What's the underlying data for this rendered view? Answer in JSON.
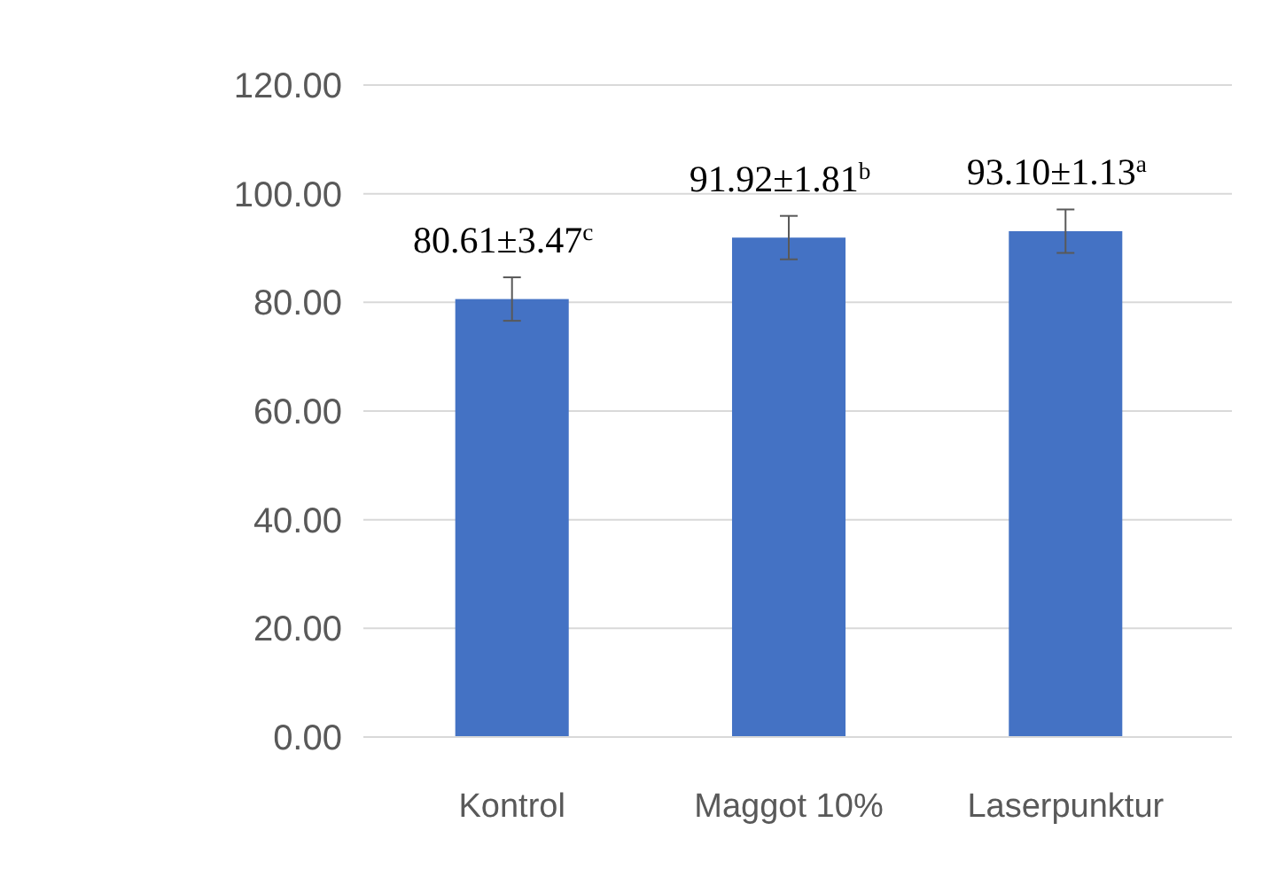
{
  "chart_data": {
    "type": "bar",
    "categories": [
      "Kontrol",
      "Maggot 10%",
      "Laserpunktur"
    ],
    "values": [
      80.61,
      91.92,
      93.1
    ],
    "errors": [
      4,
      4,
      4
    ],
    "value_labels": [
      "80.61±3.47$^{c}$",
      "91.92±1.81$^{b}$",
      "93.10±1.13$^{a}$"
    ],
    "color": "#4472c4",
    "ylim": [
      0,
      120
    ],
    "yticks": [
      {
        "value": 0,
        "label": "0.00"
      },
      {
        "value": 20,
        "label": "20.00"
      },
      {
        "value": 40,
        "label": "40.00"
      },
      {
        "value": 60,
        "label": "60.00"
      },
      {
        "value": 80,
        "label": "80.00"
      },
      {
        "value": 100,
        "label": "100.00"
      },
      {
        "value": 120,
        "label": "120.00"
      }
    ],
    "grid": "y"
  }
}
